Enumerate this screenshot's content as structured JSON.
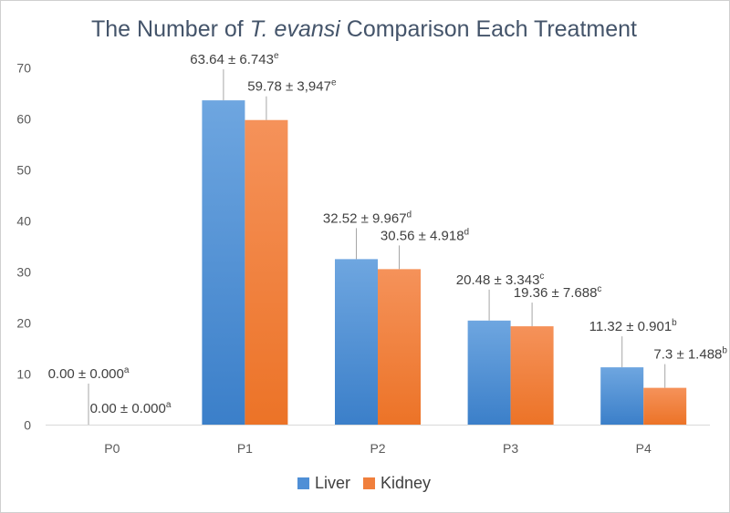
{
  "chart_data": {
    "type": "bar",
    "title": {
      "prefix": "The Number of ",
      "italic": "T. evansi",
      "suffix": " Comparison Each Treatment"
    },
    "categories": [
      "P0",
      "P1",
      "P2",
      "P3",
      "P4"
    ],
    "series": [
      {
        "name": "Liver",
        "color": "#4f8fd6",
        "values": [
          0.0,
          63.64,
          32.52,
          20.48,
          11.32
        ],
        "labels": [
          "0.00 ± 0.000",
          "63.64 ± 6.743",
          "32.52 ± 9.967",
          "20.48 ± 3.343",
          "11.32 ± 0.901"
        ],
        "superscripts": [
          "a",
          "e",
          "d",
          "c",
          "b"
        ]
      },
      {
        "name": "Kidney",
        "color": "#f07f3c",
        "values": [
          0.0,
          59.78,
          30.56,
          19.36,
          7.3
        ],
        "labels": [
          "0.00 ± 0.000",
          "59.78 ± 3,947",
          "30.56 ± 4.918",
          "19.36 ± 7.688",
          "7.3 ± 1.488"
        ],
        "superscripts": [
          "a",
          "e",
          "d",
          "c",
          "b"
        ]
      }
    ],
    "ylim": [
      0,
      70
    ],
    "yticks": [
      0,
      10,
      20,
      30,
      40,
      50,
      60,
      70
    ],
    "xlabel": "",
    "ylabel": "",
    "grid": false,
    "legend": "bottom-center"
  }
}
